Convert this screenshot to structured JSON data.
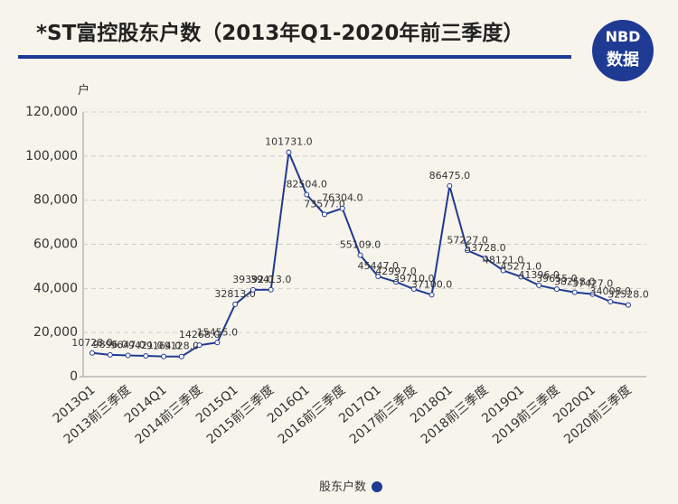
{
  "logo": {
    "top": "NBD",
    "bottom": "数据"
  },
  "chart_data": {
    "type": "line",
    "title": "*ST富控股东户数（2013年Q1-2020年前三季度）",
    "y_unit": "户",
    "categories": [
      "2013Q1",
      null,
      "2013前三季度",
      null,
      "2014Q1",
      null,
      "2014前三季度",
      null,
      "2015Q1",
      null,
      "2015前三季度",
      null,
      "2016Q1",
      null,
      "2016前三季度",
      null,
      "2017Q1",
      null,
      "2017前三季度",
      null,
      "2018Q1",
      null,
      "2018前三季度",
      null,
      "2019Q1",
      null,
      "2019前三季度",
      null,
      "2020Q1",
      null,
      "2020前三季度"
    ],
    "series": [
      {
        "name": "股东户数",
        "color": "#1f3a93",
        "values": [
          10728,
          9896,
          9647,
          9421,
          9164,
          9128,
          14268,
          15455,
          32813,
          39392,
          39413,
          101731,
          82504,
          73577,
          76304,
          55109,
          45447,
          42997,
          39710,
          37100,
          86475,
          57227,
          53728,
          48121,
          45271,
          41396,
          39655,
          38258,
          37427,
          34008,
          32528
        ],
        "value_labels": [
          "10728.0",
          "9896.0",
          "9647.0",
          "9421.0",
          "9164.0",
          "9128.0",
          "14268.0",
          "15455.0",
          "32813.0",
          "39392.0",
          "39413.0",
          "101731.0",
          "82504.0",
          "73577.0",
          "76304.0",
          "55109.0",
          "45447.0",
          "42997.0",
          "39710.0",
          "37100.0",
          "86475.0",
          "57227.0",
          "53728.0",
          "48121.0",
          "45271.0",
          "41396.0",
          "39655.0",
          "38258.0",
          "37427.0",
          "34008.0",
          "32528.0"
        ]
      }
    ],
    "ylim": [
      0,
      120000
    ],
    "yticks": [
      0,
      {
        "value": 20000,
        "label": "20,000"
      },
      {
        "value": 40000,
        "label": "40,000"
      },
      {
        "value": 60000,
        "label": "60,000"
      },
      {
        "value": 80000,
        "label": "80,000"
      },
      {
        "value": 100000,
        "label": "100,000"
      },
      {
        "value": 120000,
        "label": "120,000"
      }
    ],
    "grid": true
  }
}
